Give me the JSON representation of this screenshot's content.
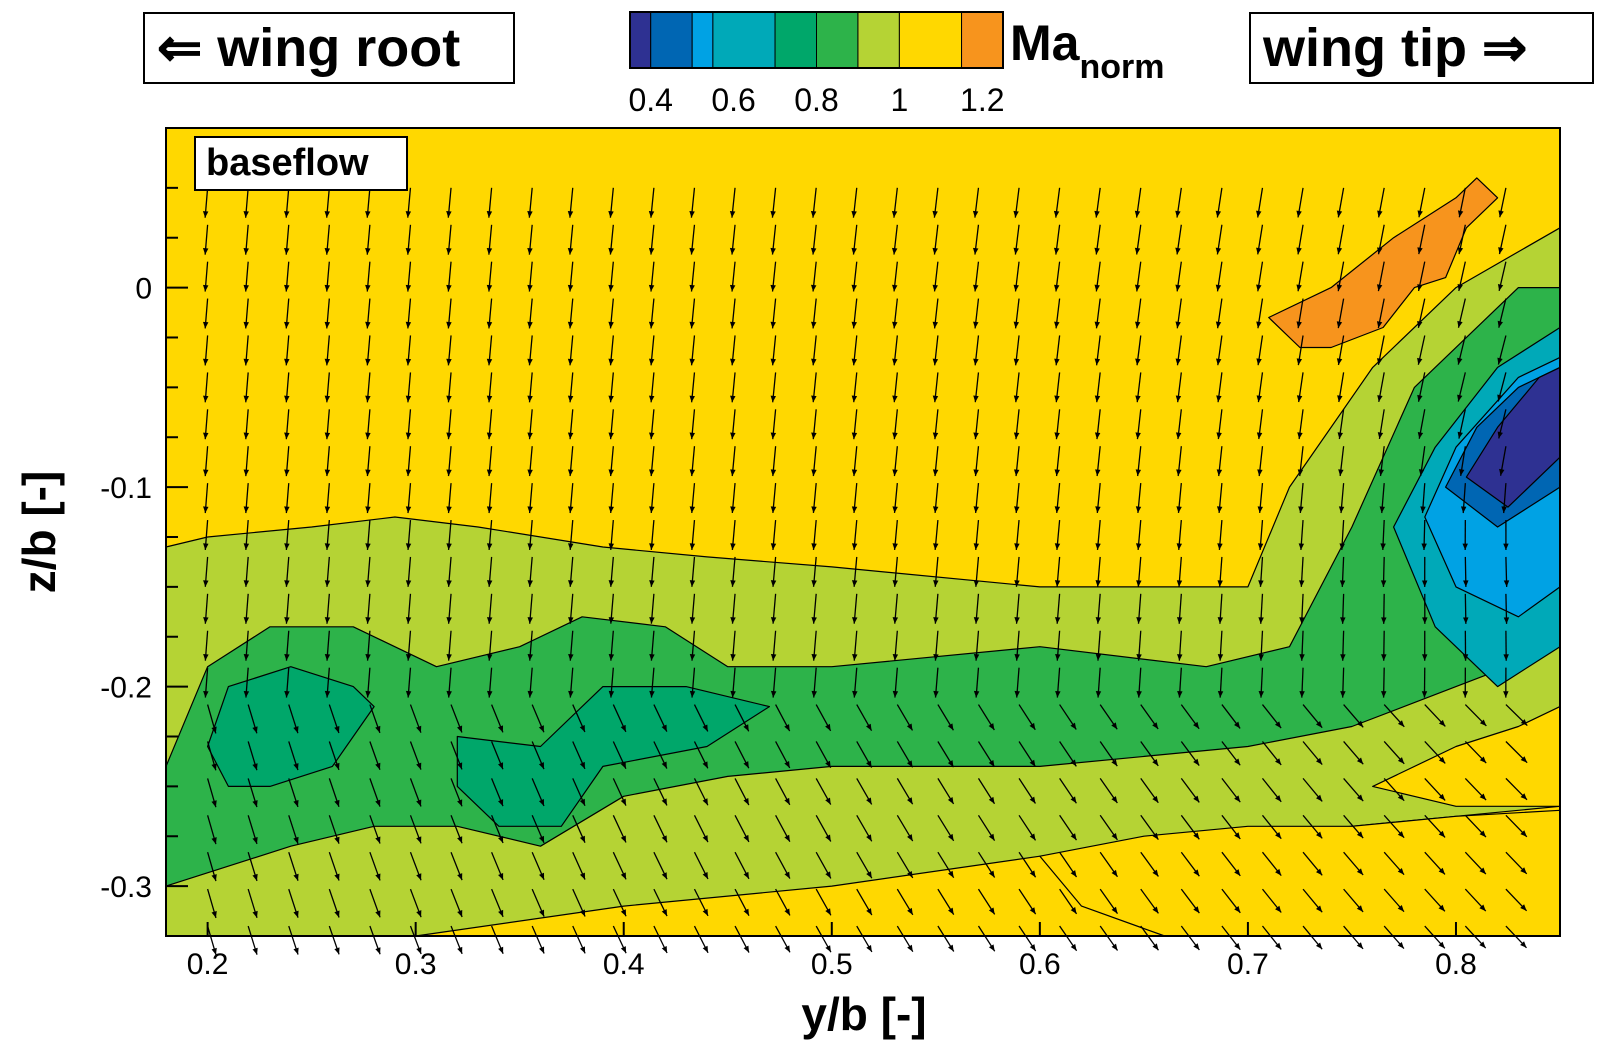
{
  "labels": {
    "left_box": "⇐ wing root",
    "right_box": "wing tip ⇒",
    "inset": "baseflow"
  },
  "chart_data": {
    "type": "heatmap",
    "title": "",
    "variable": "Ma",
    "variable_subscript": "norm",
    "xlabel": "y/b [-]",
    "ylabel": "z/b [-]",
    "xlim": [
      0.18,
      0.85
    ],
    "ylim": [
      -0.325,
      0.08
    ],
    "x_ticks": [
      0.2,
      0.3,
      0.4,
      0.5,
      0.6,
      0.7,
      0.8
    ],
    "y_ticks": [
      0,
      -0.1,
      -0.2,
      -0.3
    ],
    "colorbar": {
      "levels": [
        0.35,
        0.4,
        0.5,
        0.55,
        0.7,
        0.8,
        0.9,
        1.0,
        1.15,
        1.25
      ],
      "colors": [
        "#2E3192",
        "#0066B3",
        "#00A2E4",
        "#00A9B8",
        "#00A76A",
        "#2DB34A",
        "#B5D334",
        "#FFD800",
        "#F7941D",
        "#ED1C24"
      ],
      "tick_labels": [
        "0.4",
        "0.6",
        "0.8",
        "1",
        "1.2"
      ],
      "tick_values": [
        0.4,
        0.6,
        0.8,
        1.0,
        1.2
      ]
    },
    "regions": [
      {
        "name": "green-band-outer",
        "level": 0.85,
        "color": "#B5D334",
        "points": [
          [
            0.18,
            -0.13
          ],
          [
            0.2,
            -0.125
          ],
          [
            0.25,
            -0.12
          ],
          [
            0.29,
            -0.115
          ],
          [
            0.33,
            -0.12
          ],
          [
            0.39,
            -0.13
          ],
          [
            0.44,
            -0.135
          ],
          [
            0.5,
            -0.14
          ],
          [
            0.6,
            -0.15
          ],
          [
            0.7,
            -0.15
          ],
          [
            0.72,
            -0.1
          ],
          [
            0.76,
            -0.04
          ],
          [
            0.8,
            0.0
          ],
          [
            0.85,
            0.03
          ],
          [
            0.85,
            -0.26
          ],
          [
            0.8,
            -0.265
          ],
          [
            0.7,
            -0.275
          ],
          [
            0.6,
            -0.285
          ],
          [
            0.5,
            -0.3
          ],
          [
            0.4,
            -0.31
          ],
          [
            0.3,
            -0.325
          ],
          [
            0.18,
            -0.325
          ]
        ]
      },
      {
        "name": "green-band-mid",
        "level": 0.75,
        "color": "#2DB34A",
        "points": [
          [
            0.18,
            -0.24
          ],
          [
            0.2,
            -0.19
          ],
          [
            0.23,
            -0.17
          ],
          [
            0.27,
            -0.17
          ],
          [
            0.31,
            -0.19
          ],
          [
            0.35,
            -0.18
          ],
          [
            0.38,
            -0.165
          ],
          [
            0.42,
            -0.17
          ],
          [
            0.45,
            -0.19
          ],
          [
            0.5,
            -0.19
          ],
          [
            0.6,
            -0.18
          ],
          [
            0.68,
            -0.19
          ],
          [
            0.72,
            -0.18
          ],
          [
            0.75,
            -0.12
          ],
          [
            0.78,
            -0.05
          ],
          [
            0.83,
            0.0
          ],
          [
            0.85,
            0.0
          ],
          [
            0.85,
            -0.18
          ],
          [
            0.8,
            -0.2
          ],
          [
            0.75,
            -0.22
          ],
          [
            0.7,
            -0.23
          ],
          [
            0.6,
            -0.24
          ],
          [
            0.5,
            -0.24
          ],
          [
            0.45,
            -0.245
          ],
          [
            0.4,
            -0.255
          ],
          [
            0.36,
            -0.28
          ],
          [
            0.32,
            -0.27
          ],
          [
            0.28,
            -0.27
          ],
          [
            0.24,
            -0.28
          ],
          [
            0.18,
            -0.3
          ]
        ]
      },
      {
        "name": "green-core-left",
        "level": 0.65,
        "color": "#00A76A",
        "points": [
          [
            0.2,
            -0.23
          ],
          [
            0.21,
            -0.2
          ],
          [
            0.24,
            -0.19
          ],
          [
            0.27,
            -0.2
          ],
          [
            0.28,
            -0.21
          ],
          [
            0.26,
            -0.24
          ],
          [
            0.23,
            -0.25
          ],
          [
            0.21,
            -0.25
          ]
        ]
      },
      {
        "name": "green-core-center",
        "level": 0.65,
        "color": "#00A76A",
        "points": [
          [
            0.32,
            -0.225
          ],
          [
            0.36,
            -0.23
          ],
          [
            0.39,
            -0.2
          ],
          [
            0.43,
            -0.2
          ],
          [
            0.47,
            -0.21
          ],
          [
            0.44,
            -0.23
          ],
          [
            0.39,
            -0.24
          ],
          [
            0.37,
            -0.27
          ],
          [
            0.34,
            -0.27
          ],
          [
            0.32,
            -0.25
          ]
        ]
      },
      {
        "name": "vortex-ring-1",
        "level": 0.6,
        "color": "#00A9B8",
        "points": [
          [
            0.77,
            -0.12
          ],
          [
            0.79,
            -0.08
          ],
          [
            0.82,
            -0.04
          ],
          [
            0.85,
            -0.02
          ],
          [
            0.85,
            -0.18
          ],
          [
            0.82,
            -0.2
          ],
          [
            0.79,
            -0.17
          ]
        ]
      },
      {
        "name": "vortex-ring-2",
        "level": 0.5,
        "color": "#00A2E4",
        "points": [
          [
            0.785,
            -0.115
          ],
          [
            0.8,
            -0.08
          ],
          [
            0.83,
            -0.045
          ],
          [
            0.85,
            -0.035
          ],
          [
            0.85,
            -0.15
          ],
          [
            0.83,
            -0.165
          ],
          [
            0.8,
            -0.15
          ]
        ]
      },
      {
        "name": "vortex-ring-3",
        "level": 0.45,
        "color": "#0066B3",
        "points": [
          [
            0.795,
            -0.1
          ],
          [
            0.81,
            -0.07
          ],
          [
            0.83,
            -0.05
          ],
          [
            0.85,
            -0.04
          ],
          [
            0.85,
            -0.1
          ],
          [
            0.82,
            -0.12
          ]
        ]
      },
      {
        "name": "vortex-core",
        "level": 0.38,
        "color": "#2E3192",
        "points": [
          [
            0.805,
            -0.095
          ],
          [
            0.82,
            -0.07
          ],
          [
            0.84,
            -0.045
          ],
          [
            0.85,
            -0.04
          ],
          [
            0.85,
            -0.085
          ],
          [
            0.825,
            -0.11
          ]
        ]
      },
      {
        "name": "lower-right-yellow",
        "level": 1.0,
        "color": "#FFD800",
        "points": [
          [
            0.6,
            -0.285
          ],
          [
            0.65,
            -0.275
          ],
          [
            0.7,
            -0.27
          ],
          [
            0.75,
            -0.27
          ],
          [
            0.8,
            -0.265
          ],
          [
            0.85,
            -0.262
          ],
          [
            0.85,
            -0.325
          ],
          [
            0.66,
            -0.325
          ],
          [
            0.62,
            -0.31
          ]
        ]
      },
      {
        "name": "lower-right-yellow-2",
        "level": 1.0,
        "color": "#FFD800",
        "points": [
          [
            0.76,
            -0.25
          ],
          [
            0.8,
            -0.23
          ],
          [
            0.83,
            -0.22
          ],
          [
            0.85,
            -0.21
          ],
          [
            0.85,
            -0.26
          ],
          [
            0.8,
            -0.26
          ]
        ]
      },
      {
        "name": "tip-supersonic",
        "level": 1.15,
        "color": "#F7941D",
        "points": [
          [
            0.71,
            -0.015
          ],
          [
            0.74,
            0.0
          ],
          [
            0.77,
            0.025
          ],
          [
            0.8,
            0.045
          ],
          [
            0.81,
            0.055
          ],
          [
            0.82,
            0.045
          ],
          [
            0.805,
            0.03
          ],
          [
            0.795,
            0.005
          ],
          [
            0.78,
            0.0
          ],
          [
            0.765,
            -0.02
          ],
          [
            0.74,
            -0.03
          ],
          [
            0.725,
            -0.03
          ]
        ]
      }
    ]
  }
}
